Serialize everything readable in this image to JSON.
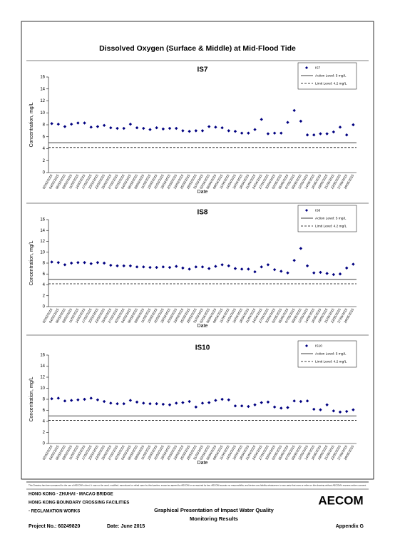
{
  "page": {
    "title": "Dissolved Oxygen (Surface & Middle) at Mid-Flood Tide"
  },
  "chart_data": [
    {
      "type": "scatter",
      "title": "IS7",
      "x_label": "Date",
      "y_label": "Concentration, mg/L",
      "categories": [
        "02/02/2015",
        "04/02/2015",
        "06/02/2015",
        "09/02/2015",
        "11/02/2015",
        "14/02/2015",
        "17/02/2015",
        "20/02/2015",
        "23/02/2015",
        "25/02/2015",
        "27/02/2015",
        "02/03/2015",
        "04/03/2015",
        "06/03/2015",
        "09/03/2015",
        "11/03/2015",
        "13/03/2015",
        "16/03/2015",
        "18/03/2015",
        "20/03/2015",
        "23/03/2015",
        "25/03/2015",
        "28/03/2015",
        "31/03/2015",
        "02/04/2015",
        "06/04/2015",
        "09/04/2015",
        "11/04/2015",
        "14/04/2015",
        "16/04/2015",
        "18/04/2015",
        "21/04/2015",
        "24/04/2015",
        "27/04/2015",
        "30/04/2015",
        "02/05/2015",
        "05/05/2015",
        "07/05/2015",
        "09/05/2015",
        "12/05/2015",
        "14/05/2015",
        "16/05/2015",
        "19/05/2015",
        "21/05/2015",
        "23/05/2015",
        "27/05/2015",
        "29/05/2015"
      ],
      "series": [
        {
          "name": "IS7",
          "color": "#000080",
          "values": [
            8.2,
            8.1,
            7.7,
            8.1,
            8.3,
            8.3,
            7.6,
            7.7,
            7.9,
            7.5,
            7.4,
            7.4,
            8.1,
            7.5,
            7.4,
            7.2,
            7.5,
            7.3,
            7.4,
            7.4,
            7.0,
            6.9,
            7.0,
            7.0,
            7.7,
            7.6,
            7.5,
            7.0,
            6.9,
            6.6,
            6.6,
            7.2,
            8.9,
            6.5,
            6.6,
            6.6,
            8.4,
            10.4,
            8.6,
            6.3,
            6.3,
            6.5,
            6.5,
            6.8,
            7.6,
            6.3,
            8.0
          ]
        }
      ],
      "reference_lines": [
        {
          "name": "Action Level: 5 mg/L",
          "value": 5,
          "style": "solid"
        },
        {
          "name": "Limit Level: 4.2 mg/L",
          "value": 4.2,
          "style": "dashed"
        }
      ],
      "ylim": [
        0,
        16
      ],
      "yticks": [
        0,
        2,
        4,
        6,
        8,
        10,
        12,
        14,
        16
      ]
    },
    {
      "type": "scatter",
      "title": "IS8",
      "x_label": "Date",
      "y_label": "Concentration, mg/L",
      "categories": [
        "02/02/2015",
        "04/02/2015",
        "06/02/2015",
        "09/02/2015",
        "11/02/2015",
        "14/02/2015",
        "17/02/2015",
        "20/02/2015",
        "23/02/2015",
        "25/02/2015",
        "27/02/2015",
        "02/03/2015",
        "04/03/2015",
        "06/03/2015",
        "09/03/2015",
        "11/03/2015",
        "13/03/2015",
        "16/03/2015",
        "18/03/2015",
        "20/03/2015",
        "23/03/2015",
        "25/03/2015",
        "28/03/2015",
        "31/03/2015",
        "02/04/2015",
        "06/04/2015",
        "09/04/2015",
        "11/04/2015",
        "14/04/2015",
        "16/04/2015",
        "18/04/2015",
        "21/04/2015",
        "24/04/2015",
        "27/04/2015",
        "30/04/2015",
        "02/05/2015",
        "05/05/2015",
        "07/05/2015",
        "09/05/2015",
        "12/05/2015",
        "14/05/2015",
        "16/05/2015",
        "19/05/2015",
        "21/05/2015",
        "23/05/2015",
        "27/05/2015",
        "29/05/2015"
      ],
      "series": [
        {
          "name": "IS8",
          "color": "#000080",
          "values": [
            8.2,
            8.1,
            7.7,
            8.0,
            8.1,
            8.1,
            7.9,
            8.1,
            8.0,
            7.6,
            7.5,
            7.5,
            7.5,
            7.3,
            7.3,
            7.2,
            7.2,
            7.3,
            7.2,
            7.4,
            7.1,
            6.9,
            7.3,
            7.3,
            7.0,
            7.4,
            7.7,
            7.5,
            7.0,
            6.9,
            6.9,
            6.4,
            7.3,
            7.7,
            6.8,
            6.5,
            6.2,
            8.5,
            10.7,
            7.5,
            6.2,
            6.3,
            6.1,
            5.9,
            6.0,
            7.1,
            7.8
          ]
        }
      ],
      "reference_lines": [
        {
          "name": "Action Level: 5 mg/L",
          "value": 5,
          "style": "solid"
        },
        {
          "name": "Limit Level: 4.2 mg/L",
          "value": 4.2,
          "style": "dashed"
        }
      ],
      "ylim": [
        0,
        16
      ],
      "yticks": [
        0,
        2,
        4,
        6,
        8,
        10,
        12,
        14,
        16
      ]
    },
    {
      "type": "scatter",
      "title": "IS10",
      "x_label": "Date",
      "y_label": "Concentration, mg/L",
      "categories": [
        "02/02/2015",
        "04/02/2015",
        "06/02/2015",
        "09/02/2015",
        "11/02/2015",
        "14/02/2015",
        "17/02/2015",
        "20/02/2015",
        "23/02/2015",
        "25/02/2015",
        "27/02/2015",
        "02/03/2015",
        "04/03/2015",
        "06/03/2015",
        "09/03/2015",
        "11/03/2015",
        "13/03/2015",
        "16/03/2015",
        "18/03/2015",
        "20/03/2015",
        "23/03/2015",
        "25/03/2015",
        "28/03/2015",
        "31/03/2015",
        "02/04/2015",
        "06/04/2015",
        "09/04/2015",
        "11/04/2015",
        "14/04/2015",
        "16/04/2015",
        "18/04/2015",
        "21/04/2015",
        "24/04/2015",
        "27/04/2015",
        "30/04/2015",
        "02/05/2015",
        "05/05/2015",
        "07/05/2015",
        "09/05/2015",
        "12/05/2015",
        "14/05/2015",
        "16/05/2015",
        "19/05/2015",
        "21/05/2015",
        "23/05/2015",
        "27/05/2015",
        "29/05/2015"
      ],
      "series": [
        {
          "name": "IS10",
          "color": "#000080",
          "values": [
            8.1,
            8.2,
            7.7,
            7.8,
            7.9,
            8.0,
            8.2,
            7.9,
            7.6,
            7.3,
            7.2,
            7.2,
            7.8,
            7.5,
            7.3,
            7.2,
            7.2,
            7.1,
            7.0,
            7.3,
            7.4,
            7.6,
            6.6,
            7.3,
            7.4,
            7.8,
            8.0,
            7.9,
            6.8,
            6.8,
            6.7,
            7.0,
            7.4,
            7.5,
            6.6,
            6.4,
            6.5,
            7.7,
            7.6,
            7.7,
            6.2,
            6.1,
            7.0,
            5.9,
            5.7,
            5.8,
            6.1
          ]
        }
      ],
      "reference_lines": [
        {
          "name": "Action Level: 5 mg/L",
          "value": 5,
          "style": "solid"
        },
        {
          "name": "Limit Level: 4.2 mg/L",
          "value": 4.2,
          "style": "dashed"
        }
      ],
      "ylim": [
        0,
        16
      ],
      "yticks": [
        0,
        2,
        4,
        6,
        8,
        10,
        12,
        14,
        16
      ]
    }
  ],
  "footer": {
    "disclaimer": "This Drawing has been prepared for the use of AECOM's client. It may not be used, modified, reproduced or relied upon by third parties, except as agreed by AECOM or as required by law. AECOM accepts no responsibility, and denies any liability whatsoever, to any party that uses or relies on this drawing without AECOM's express written consent.",
    "project_lines": [
      "HONG KONG - ZHUHAI - MACAO BRIDGE",
      "HONG KONG BOUNDARY CROSSING FACILITIES",
      "- RECLAMATION WORKS"
    ],
    "drawing_title": [
      "Graphical Presentation of Impact Water Quality",
      "Monitoring Results"
    ],
    "logo": "AECOM",
    "project_no": "Project No.: 60249820",
    "date": "Date: June 2015",
    "appendix": "Appendix G"
  }
}
